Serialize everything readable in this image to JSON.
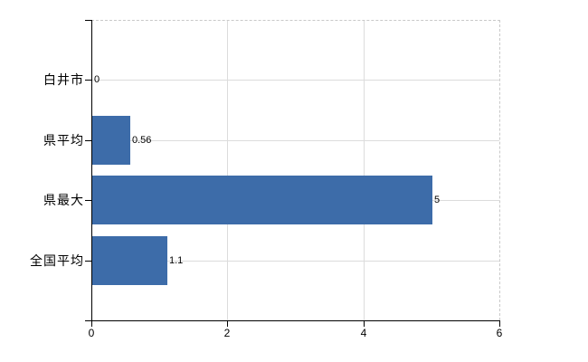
{
  "chart_data": {
    "type": "bar",
    "orientation": "horizontal",
    "title": "",
    "xlabel": "",
    "ylabel": "",
    "categories": [
      "白井市",
      "県平均",
      "県最大",
      "全国平均"
    ],
    "values": [
      0,
      0.56,
      5,
      1.1
    ],
    "value_labels": [
      "0",
      "0.56",
      "5",
      "1.1"
    ],
    "xlim": [
      0,
      6
    ],
    "x_ticks": [
      0,
      2,
      4,
      6
    ],
    "x_tick_labels": [
      "0",
      "2",
      "4",
      "6"
    ],
    "grid": true,
    "legend": false,
    "colors": {
      "bar": "#3d6ca9",
      "gridline": "#dcdcdc",
      "plot_border": "#c9c9c9",
      "axis": "#000000",
      "background": "#ffffff",
      "text": "#000000"
    }
  }
}
